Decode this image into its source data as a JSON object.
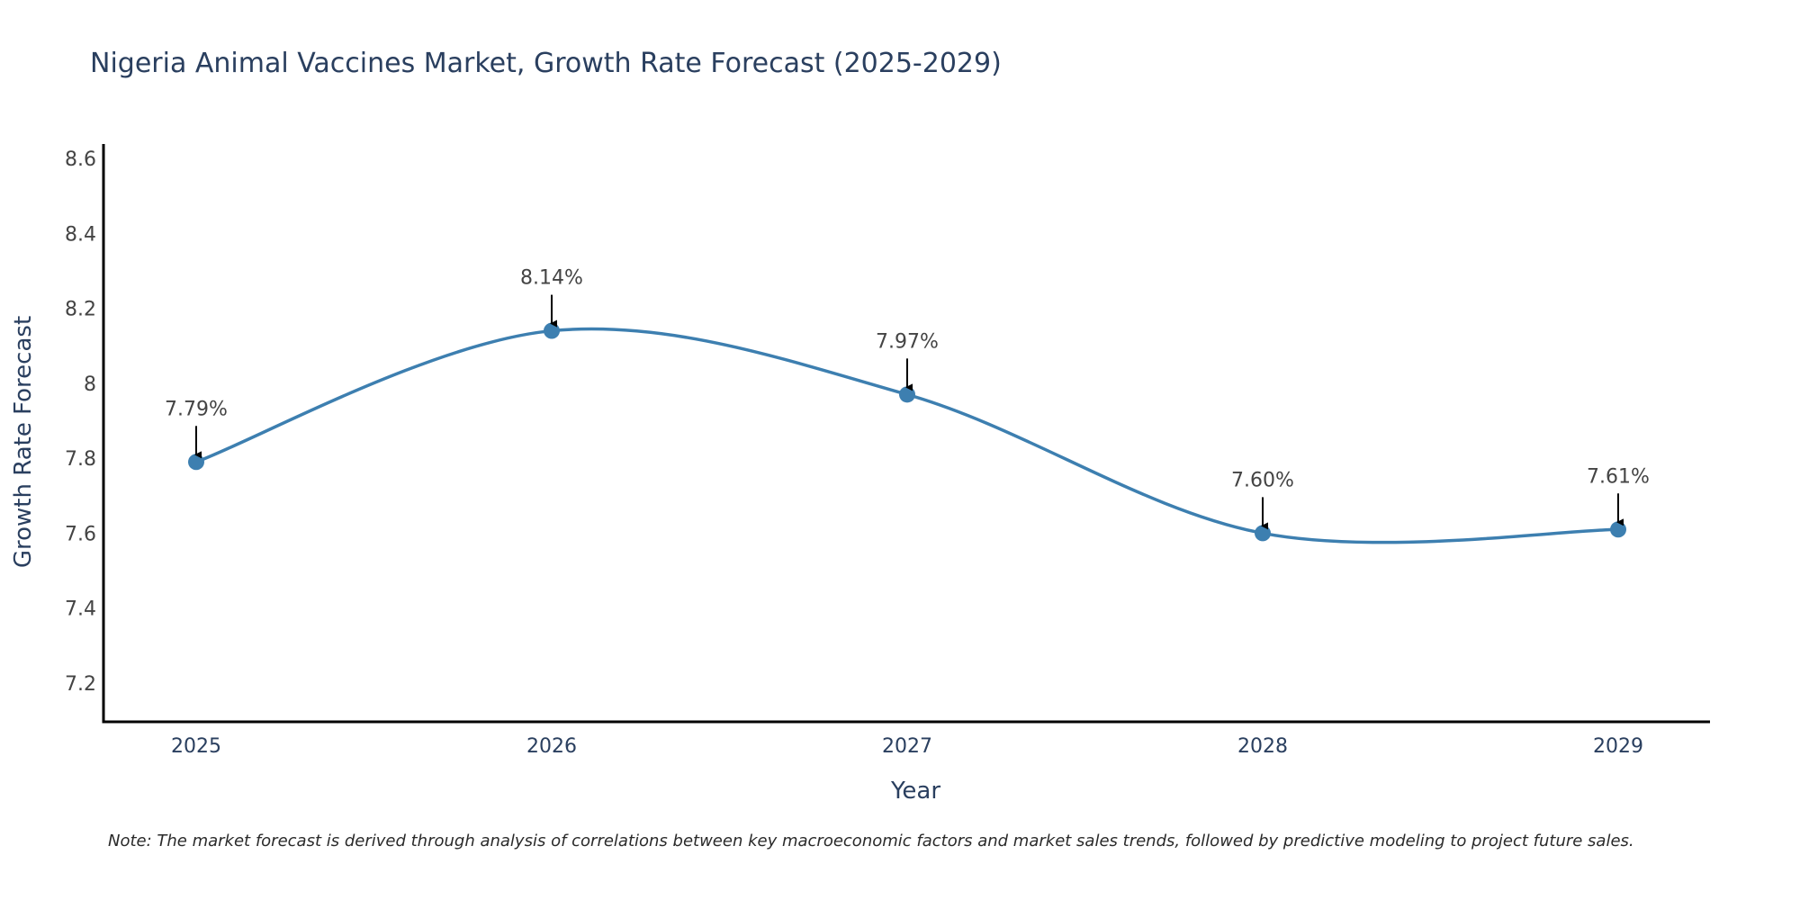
{
  "chart_data": {
    "type": "line",
    "title": "Nigeria Animal Vaccines Market, Growth Rate Forecast (2025-2029)",
    "xlabel": "Year",
    "ylabel": "Growth Rate Forecast",
    "categories": [
      "2025",
      "2026",
      "2027",
      "2028",
      "2029"
    ],
    "series": [
      {
        "name": "Growth Rate Forecast",
        "values": [
          7.79,
          8.14,
          7.97,
          7.6,
          7.61
        ],
        "labels": [
          "7.79%",
          "8.14%",
          "7.97%",
          "7.60%",
          "7.61%"
        ],
        "color": "#3d7fb0",
        "line_shape": "spline",
        "markers": true
      }
    ],
    "y_ticks": [
      7.2,
      7.4,
      7.6,
      7.8,
      8,
      8.2,
      8.4,
      8.6
    ],
    "y_tick_labels": [
      "7.2",
      "7.4",
      "7.6",
      "7.8",
      "8",
      "8.2",
      "8.4",
      "8.6"
    ],
    "ylim": [
      7.1,
      8.63
    ],
    "grid": false,
    "legend": "none",
    "annotations": "arrow pointing down to each data point with percent label above",
    "note": "Note: The market forecast is derived through analysis of correlations between key macroeconomic factors and market sales trends, followed by predictive modeling to project future sales."
  }
}
